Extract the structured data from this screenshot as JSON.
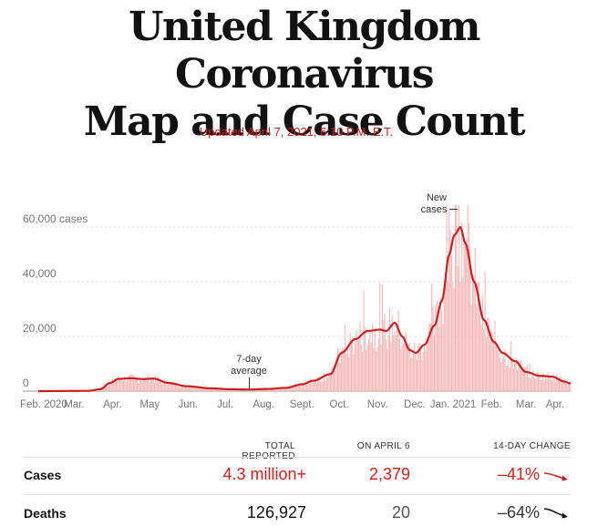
{
  "headline": {
    "line1": "United Kingdom Coronavirus",
    "line2": "Map and Case Count"
  },
  "updated": "Updated April 7, 2021, 6:10 P.M. E.T.",
  "chart_data": {
    "type": "bar",
    "title": "",
    "ylim": [
      0,
      68000
    ],
    "y_ticks": [
      {
        "value": 0,
        "label": "0"
      },
      {
        "value": 20000,
        "label": "20,000"
      },
      {
        "value": 40000,
        "label": "40,000"
      },
      {
        "value": 60000,
        "label": "60,000 cases"
      }
    ],
    "x_ticks": [
      {
        "day": 0,
        "label": "Feb. 2020"
      },
      {
        "day": 29,
        "label": "Mar."
      },
      {
        "day": 60,
        "label": "Apr."
      },
      {
        "day": 90,
        "label": "May"
      },
      {
        "day": 121,
        "label": "Jun."
      },
      {
        "day": 151,
        "label": "Jul."
      },
      {
        "day": 182,
        "label": "Aug."
      },
      {
        "day": 213,
        "label": "Sept."
      },
      {
        "day": 243,
        "label": "Oct."
      },
      {
        "day": 274,
        "label": "Nov."
      },
      {
        "day": 304,
        "label": "Dec."
      },
      {
        "day": 335,
        "label": "Jan. 2021"
      },
      {
        "day": 366,
        "label": "Feb."
      },
      {
        "day": 394,
        "label": "Mar."
      },
      {
        "day": 425,
        "label": "Apr."
      }
    ],
    "series": [
      {
        "name": "New cases",
        "kind": "daily bars"
      },
      {
        "name": "7-day average",
        "kind": "line"
      }
    ],
    "seven_day_average_keypoints": [
      [
        0,
        0
      ],
      [
        40,
        100
      ],
      [
        50,
        700
      ],
      [
        58,
        3000
      ],
      [
        65,
        4500
      ],
      [
        75,
        4700
      ],
      [
        85,
        4400
      ],
      [
        93,
        4600
      ],
      [
        105,
        3000
      ],
      [
        120,
        1800
      ],
      [
        140,
        1000
      ],
      [
        155,
        700
      ],
      [
        170,
        600
      ],
      [
        185,
        800
      ],
      [
        200,
        1200
      ],
      [
        213,
        2500
      ],
      [
        222,
        3800
      ],
      [
        236,
        6200
      ],
      [
        245,
        14000
      ],
      [
        256,
        19000
      ],
      [
        266,
        22000
      ],
      [
        276,
        22500
      ],
      [
        281,
        22000
      ],
      [
        288,
        25000
      ],
      [
        294,
        20000
      ],
      [
        300,
        15000
      ],
      [
        305,
        14000
      ],
      [
        312,
        17000
      ],
      [
        320,
        24000
      ],
      [
        326,
        33000
      ],
      [
        332,
        50000
      ],
      [
        336,
        57000
      ],
      [
        341,
        60000
      ],
      [
        345,
        54000
      ],
      [
        352,
        40000
      ],
      [
        360,
        26000
      ],
      [
        368,
        18000
      ],
      [
        375,
        14000
      ],
      [
        385,
        11000
      ],
      [
        394,
        7000
      ],
      [
        405,
        5600
      ],
      [
        415,
        5300
      ],
      [
        425,
        3500
      ],
      [
        430,
        2800
      ]
    ],
    "annotations": [
      {
        "text_lines": [
          "New",
          "cases"
        ],
        "target": "daily bars near peak"
      },
      {
        "text_lines": [
          "7-day",
          "average"
        ],
        "target": "average line in July"
      }
    ]
  },
  "table": {
    "headers": {
      "total": "TOTAL REPORTED",
      "day": "ON APRIL 6",
      "change": "14-DAY CHANGE"
    },
    "rows": [
      {
        "label": "Cases",
        "total": "4.3 million+",
        "day": "2,379",
        "change": "–41%",
        "color": "#cc1f1f"
      },
      {
        "label": "Deaths",
        "total": "126,927",
        "day": "20",
        "change": "–64%",
        "color": "#121212"
      }
    ]
  },
  "colors": {
    "accent": "#cc1f1f",
    "bar": "#f4b8b8",
    "grid": "#d9d9d9",
    "axis_text": "#777777"
  }
}
